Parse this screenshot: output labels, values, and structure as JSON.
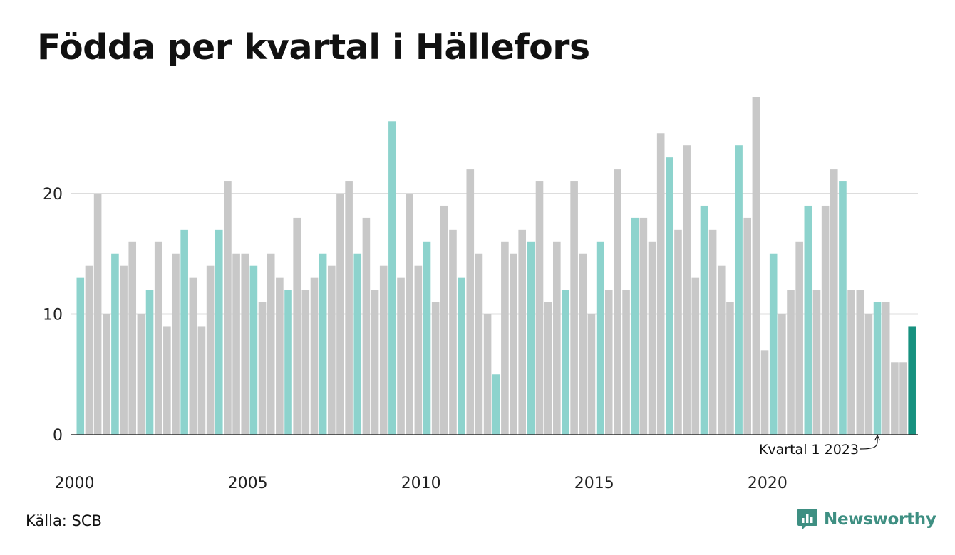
{
  "title": "Födda per kvartal i Hällefors",
  "source": "Källa: SCB",
  "brand": {
    "name": "Newsworthy",
    "icon": "newsworthy-logo-icon",
    "color": "#3e8f82"
  },
  "colors": {
    "q1": "#8dd3cd",
    "other": "#c8c8c8",
    "highlight": "#17917f",
    "grid": "#dddddd",
    "axis": "#333333"
  },
  "chart_data": {
    "type": "bar",
    "title": "Födda per kvartal i Hällefors",
    "xlabel": "",
    "ylabel": "",
    "ylim": [
      0,
      28
    ],
    "yticks": [
      0,
      10,
      20
    ],
    "xtick_labels": [
      "2000",
      "2005",
      "2010",
      "2015",
      "2020"
    ],
    "grid": true,
    "first_quarter": "2000 Q1",
    "quarters_per_year": 4,
    "annotation": {
      "text": "Kvartal 1 2023",
      "target": "2023 Q1"
    },
    "values": [
      13,
      14,
      20,
      10,
      15,
      14,
      16,
      10,
      12,
      16,
      9,
      15,
      17,
      13,
      9,
      14,
      17,
      21,
      15,
      15,
      14,
      11,
      15,
      13,
      12,
      18,
      12,
      13,
      15,
      14,
      20,
      21,
      15,
      18,
      12,
      14,
      26,
      13,
      20,
      14,
      16,
      11,
      19,
      17,
      13,
      22,
      15,
      10,
      5,
      16,
      15,
      17,
      16,
      21,
      11,
      16,
      12,
      21,
      15,
      10,
      16,
      12,
      22,
      12,
      18,
      18,
      16,
      25,
      23,
      17,
      24,
      13,
      19,
      17,
      14,
      11,
      24,
      18,
      28,
      7,
      15,
      10,
      12,
      16,
      19,
      12,
      19,
      22,
      21,
      12,
      12,
      10,
      11,
      11,
      6,
      6,
      9
    ]
  }
}
